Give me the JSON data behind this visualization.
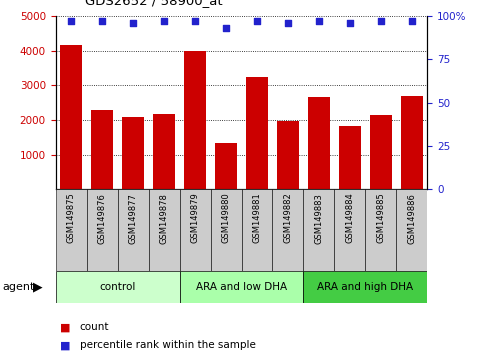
{
  "title": "GDS2652 / 58900_at",
  "samples": [
    "GSM149875",
    "GSM149876",
    "GSM149877",
    "GSM149878",
    "GSM149879",
    "GSM149880",
    "GSM149881",
    "GSM149882",
    "GSM149883",
    "GSM149884",
    "GSM149885",
    "GSM149886"
  ],
  "counts": [
    4150,
    2300,
    2100,
    2170,
    4000,
    1330,
    3250,
    1970,
    2650,
    1820,
    2130,
    2700
  ],
  "percentiles": [
    97,
    97,
    96,
    97,
    97,
    93,
    97,
    96,
    97,
    96,
    97,
    97
  ],
  "bar_color": "#cc0000",
  "dot_color": "#2222cc",
  "ylim_left": [
    0,
    5000
  ],
  "ylim_right": [
    0,
    100
  ],
  "yticks_left": [
    1000,
    2000,
    3000,
    4000,
    5000
  ],
  "yticks_right": [
    0,
    25,
    50,
    75,
    100
  ],
  "ytick_labels_right": [
    "0",
    "25",
    "50",
    "75",
    "100%"
  ],
  "groups": [
    {
      "label": "control",
      "start": 0,
      "end": 3,
      "color": "#ccffcc"
    },
    {
      "label": "ARA and low DHA",
      "start": 4,
      "end": 7,
      "color": "#aaffaa"
    },
    {
      "label": "ARA and high DHA",
      "start": 8,
      "end": 11,
      "color": "#44cc44"
    }
  ],
  "agent_label": "agent",
  "legend_count_label": "count",
  "legend_percentile_label": "percentile rank within the sample",
  "tick_color_left": "#cc0000",
  "tick_color_right": "#2222cc",
  "sample_bg_color": "#cccccc"
}
